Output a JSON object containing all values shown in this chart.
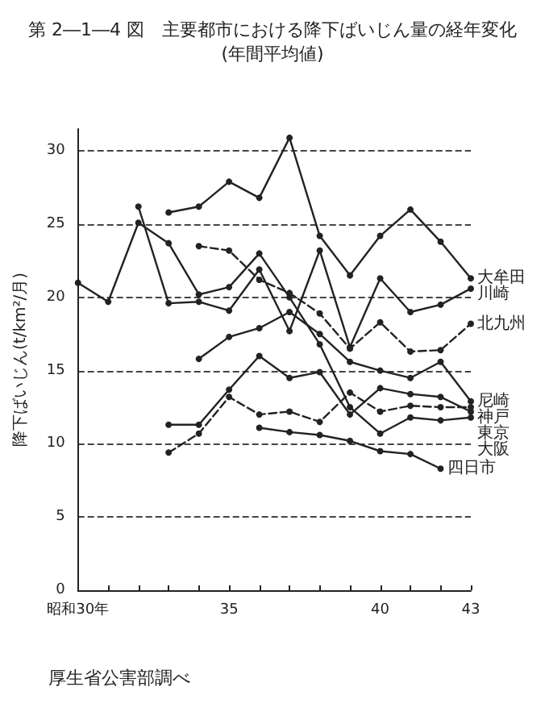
{
  "chart_data": {
    "type": "line",
    "title": "第 2―1―4 図　主要都市における降下ばいじん量の経年変化",
    "subtitle": "(年間平均値)",
    "ylabel": "降下ばいじん(t/km²/月)",
    "annotations": [
      "厚生省公害部調べ"
    ],
    "xlim": [
      30,
      43
    ],
    "xticks": [
      {
        "value": 30,
        "label": "昭和30年"
      },
      {
        "value": 31,
        "label": null
      },
      {
        "value": 32,
        "label": null
      },
      {
        "value": 33,
        "label": null
      },
      {
        "value": 34,
        "label": null
      },
      35,
      {
        "value": 36,
        "label": null
      },
      {
        "value": 37,
        "label": null
      },
      {
        "value": 38,
        "label": null
      },
      {
        "value": 39,
        "label": null
      },
      40,
      {
        "value": 41,
        "label": null
      },
      {
        "value": 42,
        "label": null
      },
      43
    ],
    "ylim": [
      0,
      31.5
    ],
    "yticks": [
      0,
      5,
      10,
      15,
      20,
      25,
      30
    ],
    "grid": "y",
    "legend": false,
    "marker": "circle",
    "series": [
      {
        "name": "大阪",
        "color": "#222222",
        "x": [
          30,
          31,
          32,
          33,
          34,
          35,
          36,
          37,
          38,
          39,
          40,
          41,
          42,
          43
        ],
        "values": [
          21.0,
          19.7,
          25.1,
          23.7,
          20.2,
          20.7,
          23.0,
          20.0,
          16.8,
          12.5,
          10.7,
          11.8,
          11.6,
          11.8
        ]
      },
      {
        "name": "川崎",
        "color": "#222222",
        "x": [
          32,
          33,
          34,
          35,
          36,
          37,
          38,
          39,
          40,
          41,
          42,
          43
        ],
        "values": [
          26.2,
          19.6,
          19.7,
          19.1,
          21.9,
          17.7,
          23.2,
          16.6,
          21.3,
          19.0,
          19.5,
          20.6
        ]
      },
      {
        "name": "大牟田",
        "color": "#222222",
        "x": [
          33,
          34,
          35,
          36,
          37,
          38,
          39,
          40,
          41,
          42,
          43
        ],
        "values": [
          25.8,
          26.2,
          27.9,
          26.8,
          30.9,
          24.2,
          21.5,
          24.2,
          26.0,
          23.8,
          21.3
        ]
      },
      {
        "name": "北九州",
        "color": "#222222",
        "line_style": "dashed",
        "x": [
          34,
          35,
          36,
          37,
          38,
          39,
          40,
          41,
          42,
          43
        ],
        "values": [
          23.5,
          23.2,
          21.2,
          20.3,
          18.9,
          16.5,
          18.3,
          16.3,
          16.4,
          18.2
        ]
      },
      {
        "name": "尼崎",
        "color": "#222222",
        "x": [
          34,
          35,
          36,
          37,
          38,
          39,
          40,
          41,
          42,
          43
        ],
        "values": [
          15.8,
          17.3,
          17.9,
          19.0,
          17.5,
          15.6,
          15.0,
          14.5,
          15.6,
          12.9
        ]
      },
      {
        "name": "東京",
        "color": "#222222",
        "x": [
          33,
          34,
          35,
          36,
          37,
          38,
          39,
          40,
          41,
          42,
          43
        ],
        "values": [
          11.3,
          11.3,
          13.7,
          16.0,
          14.5,
          14.9,
          12.0,
          13.8,
          13.4,
          13.2,
          12.2
        ]
      },
      {
        "name": "神戸",
        "color": "#222222",
        "line_style": "dashed",
        "x": [
          33,
          34,
          35,
          36,
          37,
          38,
          39,
          40,
          41,
          42,
          43
        ],
        "values": [
          9.4,
          10.7,
          13.2,
          12.0,
          12.2,
          11.5,
          13.5,
          12.2,
          12.6,
          12.5,
          12.5
        ]
      },
      {
        "name": "四日市",
        "color": "#222222",
        "x": [
          36,
          37,
          38,
          39,
          40,
          41,
          42
        ],
        "values": [
          11.1,
          10.8,
          10.6,
          10.2,
          9.5,
          9.3,
          8.3
        ]
      }
    ]
  }
}
